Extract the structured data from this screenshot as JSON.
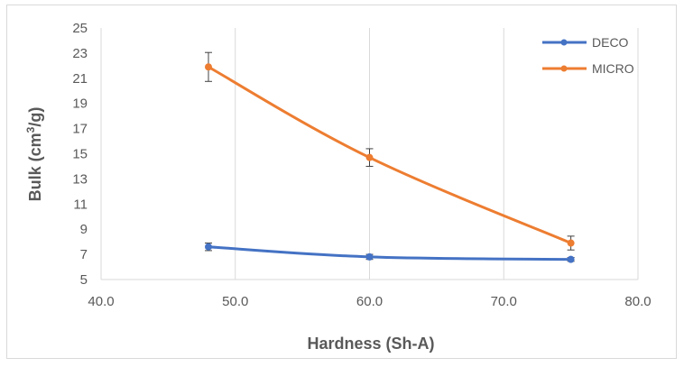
{
  "chart_data": {
    "type": "line",
    "title": "",
    "xlabel": "Hardness (Sh-A)",
    "ylabel_main": "Bulk (cm",
    "ylabel_sup": "3",
    "ylabel_tail": "/g)",
    "xlim": [
      40,
      80
    ],
    "ylim": [
      5,
      25
    ],
    "x_ticks": [
      40,
      50,
      60,
      70,
      80
    ],
    "x_tick_labels": [
      "40.0",
      "50.0",
      "60.0",
      "70.0",
      "80.0"
    ],
    "y_ticks": [
      5,
      7,
      9,
      11,
      13,
      15,
      17,
      19,
      21,
      23,
      25
    ],
    "y_tick_labels": [
      "5",
      "7",
      "9",
      "11",
      "13",
      "15",
      "17",
      "19",
      "21",
      "23",
      "25"
    ],
    "grid": "vertical",
    "legend_position": "top-right",
    "series": [
      {
        "name": "DECO",
        "color": "#4472c4",
        "x": [
          48,
          60,
          75
        ],
        "y": [
          7.6,
          6.8,
          6.6
        ],
        "err": [
          0.3,
          0.2,
          0.15
        ]
      },
      {
        "name": "MICRO",
        "color": "#ed7d31",
        "x": [
          48,
          60,
          75
        ],
        "y": [
          21.9,
          14.7,
          7.9
        ],
        "err": [
          1.15,
          0.7,
          0.55
        ]
      }
    ]
  }
}
